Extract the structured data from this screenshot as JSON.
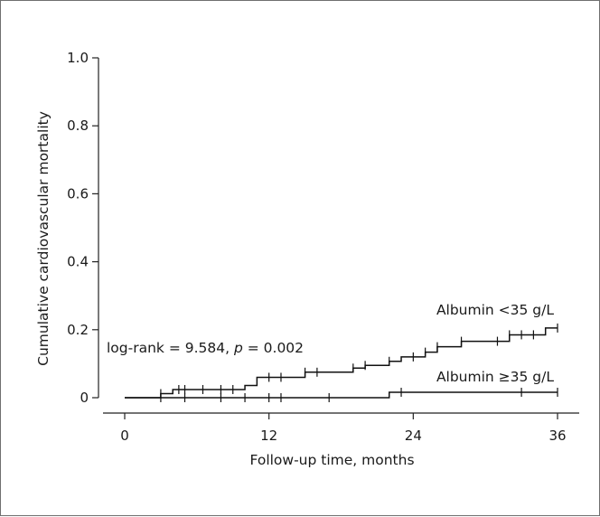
{
  "chart_data": {
    "type": "line",
    "subtype": "kaplan-meier cumulative incidence",
    "xlabel": "Follow-up time, months",
    "ylabel": "Cumulative cardiovascular mortality",
    "xlim": [
      0,
      36
    ],
    "ylim": [
      0,
      1.0
    ],
    "x_ticks": [
      "0",
      "12",
      "24",
      "36"
    ],
    "y_ticks": [
      "0",
      "0.2",
      "0.4",
      "0.6",
      "0.8",
      "1.0"
    ],
    "grid": false,
    "annotation": {
      "prefix": "log-rank = 9.584, ",
      "p_symbol": "p",
      "suffix": " = 0.002"
    },
    "series": [
      {
        "name": "Albumin <35 g/L",
        "steps": [
          [
            0,
            0
          ],
          [
            3,
            0.012
          ],
          [
            4,
            0.024
          ],
          [
            10,
            0.036
          ],
          [
            11,
            0.06
          ],
          [
            15,
            0.075
          ],
          [
            19,
            0.087
          ],
          [
            20,
            0.095
          ],
          [
            22,
            0.107
          ],
          [
            23,
            0.12
          ],
          [
            25,
            0.134
          ],
          [
            26,
            0.15
          ],
          [
            28,
            0.166
          ],
          [
            32,
            0.185
          ],
          [
            35,
            0.205
          ],
          [
            36,
            0.205
          ]
        ],
        "censored": [
          3,
          4.5,
          5,
          6.5,
          8,
          9,
          12,
          13,
          15,
          16,
          19,
          20,
          22,
          24,
          25,
          26,
          28,
          31,
          32,
          33,
          34,
          36
        ]
      },
      {
        "name": "Albumin ≥35 g/L",
        "steps": [
          [
            0,
            0
          ],
          [
            22,
            0.016
          ],
          [
            36,
            0.016
          ]
        ],
        "censored": [
          3,
          5,
          8,
          10,
          12,
          13,
          17,
          23,
          33,
          36
        ]
      }
    ]
  }
}
